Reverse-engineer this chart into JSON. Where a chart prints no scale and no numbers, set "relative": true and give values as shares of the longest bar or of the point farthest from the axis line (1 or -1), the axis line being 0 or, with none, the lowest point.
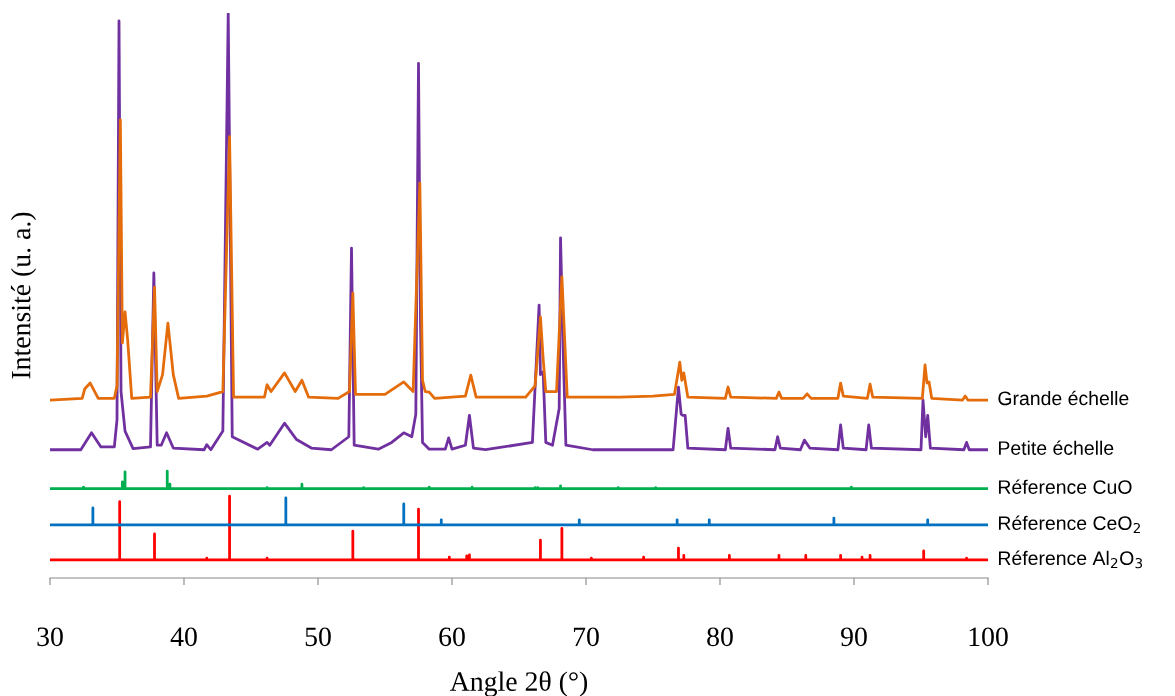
{
  "chart_data": {
    "type": "line",
    "relative": true,
    "xlabel": "Angle 2θ (°)",
    "ylabel": "Intensité (u. a.)",
    "xlim": [
      30,
      100
    ],
    "xticks": [
      30,
      40,
      50,
      60,
      70,
      80,
      90,
      100
    ],
    "legend": false,
    "series": [
      {
        "name": "Grande échelle",
        "color": "#e46c0a",
        "x": [
          30,
          32.4,
          32.6,
          33.0,
          33.6,
          34.8,
          35.0,
          35.25,
          35.4,
          35.6,
          35.8,
          36.1,
          37.5,
          37.8,
          38.0,
          38.4,
          38.8,
          39.2,
          39.6,
          41.7,
          42.9,
          43.4,
          43.7,
          46.0,
          46.2,
          46.5,
          47.5,
          48.3,
          48.8,
          49.3,
          51.5,
          52.35,
          52.6,
          52.8,
          55.0,
          56.4,
          57.1,
          57.6,
          57.8,
          58.0,
          58.3,
          58.7,
          61.0,
          61.4,
          61.8,
          65.5,
          66.2,
          66.6,
          66.8,
          67.0,
          67.8,
          68.2,
          68.4,
          68.6,
          72.5,
          75.0,
          76.6,
          77.0,
          77.15,
          77.3,
          77.6,
          80.4,
          80.6,
          80.8,
          84.2,
          84.4,
          84.6,
          86.2,
          86.5,
          86.8,
          88.8,
          89.0,
          89.2,
          91.0,
          91.2,
          91.4,
          95.1,
          95.3,
          95.45,
          95.6,
          95.8,
          98.1,
          98.3,
          98.5,
          100
        ],
        "values": [
          0.315,
          0.318,
          0.335,
          0.345,
          0.318,
          0.318,
          0.34,
          0.811,
          0.416,
          0.471,
          0.42,
          0.318,
          0.32,
          0.515,
          0.33,
          0.36,
          0.451,
          0.36,
          0.318,
          0.322,
          0.33,
          0.781,
          0.32,
          0.32,
          0.342,
          0.33,
          0.363,
          0.33,
          0.35,
          0.32,
          0.318,
          0.33,
          0.504,
          0.325,
          0.325,
          0.347,
          0.33,
          0.699,
          0.35,
          0.33,
          0.329,
          0.318,
          0.322,
          0.359,
          0.32,
          0.32,
          0.34,
          0.462,
          0.389,
          0.33,
          0.33,
          0.533,
          0.427,
          0.32,
          0.32,
          0.322,
          0.325,
          0.382,
          0.35,
          0.363,
          0.32,
          0.318,
          0.338,
          0.32,
          0.318,
          0.329,
          0.318,
          0.318,
          0.326,
          0.318,
          0.318,
          0.345,
          0.322,
          0.318,
          0.343,
          0.32,
          0.318,
          0.377,
          0.345,
          0.347,
          0.318,
          0.315,
          0.322,
          0.315,
          0.315
        ]
      },
      {
        "name": "Petite échelle",
        "color": "#7030a0",
        "x": [
          30,
          32.3,
          33.1,
          33.8,
          34.8,
          35.0,
          35.15,
          35.3,
          35.6,
          36.2,
          37.5,
          37.75,
          38.0,
          38.3,
          38.7,
          39.2,
          41.5,
          41.7,
          42.0,
          42.9,
          43.3,
          43.6,
          45.5,
          46.2,
          46.4,
          47.5,
          48.4,
          49.5,
          51.0,
          52.3,
          52.5,
          52.7,
          54.5,
          55.5,
          56.4,
          57.0,
          57.3,
          57.5,
          57.65,
          57.8,
          58.3,
          59.5,
          59.75,
          60.0,
          61.0,
          61.3,
          61.6,
          62.5,
          66.0,
          66.5,
          66.6,
          66.8,
          67.0,
          67.5,
          68.0,
          68.1,
          68.3,
          68.5,
          70.5,
          76.5,
          76.9,
          77.1,
          77.2,
          77.4,
          77.6,
          80.4,
          80.6,
          80.8,
          84.1,
          84.3,
          84.5,
          86.0,
          86.3,
          86.7,
          88.8,
          89.0,
          89.2,
          90.9,
          91.1,
          91.3,
          95.0,
          95.15,
          95.35,
          95.5,
          95.7,
          98.2,
          98.4,
          98.6,
          100
        ],
        "values": [
          0.227,
          0.227,
          0.257,
          0.232,
          0.232,
          0.28,
          0.986,
          0.33,
          0.26,
          0.229,
          0.232,
          0.54,
          0.235,
          0.235,
          0.257,
          0.23,
          0.227,
          0.236,
          0.227,
          0.26,
          1.0,
          0.25,
          0.228,
          0.24,
          0.235,
          0.274,
          0.245,
          0.23,
          0.227,
          0.25,
          0.584,
          0.235,
          0.228,
          0.24,
          0.257,
          0.25,
          0.29,
          0.911,
          0.45,
          0.24,
          0.228,
          0.228,
          0.248,
          0.228,
          0.235,
          0.288,
          0.23,
          0.227,
          0.24,
          0.483,
          0.36,
          0.365,
          0.24,
          0.235,
          0.3,
          0.602,
          0.4,
          0.235,
          0.227,
          0.227,
          0.338,
          0.29,
          0.288,
          0.288,
          0.23,
          0.227,
          0.265,
          0.23,
          0.227,
          0.25,
          0.23,
          0.227,
          0.244,
          0.23,
          0.227,
          0.271,
          0.23,
          0.227,
          0.271,
          0.23,
          0.227,
          0.315,
          0.25,
          0.288,
          0.23,
          0.227,
          0.24,
          0.227,
          0.227
        ]
      },
      {
        "name": "Réference CuO",
        "color": "#00b050",
        "x": [
          30,
          32.5,
          32.5,
          32.5,
          35.4,
          35.4,
          35.4,
          35.6,
          35.6,
          35.6,
          38.75,
          38.75,
          38.75,
          38.95,
          38.95,
          38.95,
          46.2,
          46.2,
          46.2,
          48.8,
          48.8,
          48.8,
          53.4,
          53.4,
          53.4,
          58.3,
          58.3,
          58.3,
          61.5,
          61.5,
          61.5,
          66.2,
          66.2,
          66.2,
          66.4,
          66.4,
          66.4,
          68.1,
          68.1,
          68.1,
          72.4,
          72.4,
          72.4,
          75.2,
          75.2,
          75.2,
          89.8,
          89.8,
          89.8,
          100
        ],
        "values": [
          0.158,
          0.158,
          0.161,
          0.158,
          0.158,
          0.17,
          0.158,
          0.158,
          0.188,
          0.158,
          0.158,
          0.189,
          0.158,
          0.158,
          0.166,
          0.158,
          0.158,
          0.16,
          0.158,
          0.158,
          0.166,
          0.158,
          0.158,
          0.16,
          0.158,
          0.158,
          0.161,
          0.158,
          0.158,
          0.161,
          0.158,
          0.158,
          0.16,
          0.158,
          0.158,
          0.16,
          0.158,
          0.158,
          0.163,
          0.158,
          0.158,
          0.16,
          0.158,
          0.158,
          0.16,
          0.158,
          0.158,
          0.161,
          0.158,
          0.158
        ]
      },
      {
        "name": "Réference CeO$_{2}$",
        "color": "#0070c0",
        "x": [
          30,
          33.2,
          33.2,
          33.2,
          47.6,
          47.6,
          47.6,
          56.4,
          56.4,
          56.4,
          59.2,
          59.2,
          59.2,
          69.5,
          69.5,
          69.5,
          76.8,
          76.8,
          76.8,
          79.2,
          79.2,
          79.2,
          88.5,
          88.5,
          88.5,
          95.5,
          95.5,
          95.5,
          100
        ],
        "values": [
          0.094,
          0.094,
          0.124,
          0.094,
          0.094,
          0.142,
          0.094,
          0.094,
          0.131,
          0.094,
          0.094,
          0.103,
          0.094,
          0.094,
          0.103,
          0.094,
          0.094,
          0.103,
          0.094,
          0.094,
          0.103,
          0.094,
          0.094,
          0.106,
          0.094,
          0.094,
          0.103,
          0.094,
          0.094
        ]
      },
      {
        "name": "Réference Al$_{2}$O$_{3}$",
        "color": "#ff0000",
        "x": [
          30,
          35.2,
          35.2,
          35.2,
          37.8,
          37.8,
          37.8,
          41.7,
          41.7,
          41.7,
          43.4,
          43.4,
          43.4,
          46.2,
          46.2,
          46.2,
          52.6,
          52.6,
          52.6,
          57.5,
          57.5,
          57.5,
          59.8,
          59.8,
          59.8,
          61.1,
          61.1,
          61.1,
          61.3,
          61.3,
          61.3,
          66.6,
          66.6,
          66.6,
          68.2,
          68.2,
          68.2,
          70.4,
          70.4,
          70.4,
          74.3,
          74.3,
          74.3,
          76.9,
          76.9,
          76.9,
          77.3,
          77.3,
          77.3,
          80.7,
          80.7,
          80.7,
          84.4,
          84.4,
          84.4,
          86.4,
          86.4,
          86.4,
          89.0,
          89.0,
          89.0,
          90.6,
          90.6,
          90.6,
          91.2,
          91.2,
          91.2,
          95.2,
          95.2,
          95.2,
          98.4,
          98.4,
          98.4,
          100
        ],
        "values": [
          0.032,
          0.032,
          0.135,
          0.032,
          0.032,
          0.078,
          0.032,
          0.032,
          0.035,
          0.032,
          0.032,
          0.145,
          0.032,
          0.032,
          0.035,
          0.032,
          0.032,
          0.083,
          0.032,
          0.032,
          0.122,
          0.032,
          0.032,
          0.037,
          0.032,
          0.032,
          0.039,
          0.032,
          0.032,
          0.041,
          0.032,
          0.032,
          0.067,
          0.032,
          0.032,
          0.088,
          0.032,
          0.032,
          0.035,
          0.032,
          0.032,
          0.037,
          0.032,
          0.032,
          0.053,
          0.032,
          0.032,
          0.04,
          0.032,
          0.032,
          0.04,
          0.032,
          0.032,
          0.04,
          0.032,
          0.032,
          0.04,
          0.032,
          0.032,
          0.04,
          0.032,
          0.032,
          0.037,
          0.032,
          0.032,
          0.04,
          0.032,
          0.032,
          0.048,
          0.032,
          0.032,
          0.035,
          0.032,
          0.032
        ]
      }
    ]
  }
}
